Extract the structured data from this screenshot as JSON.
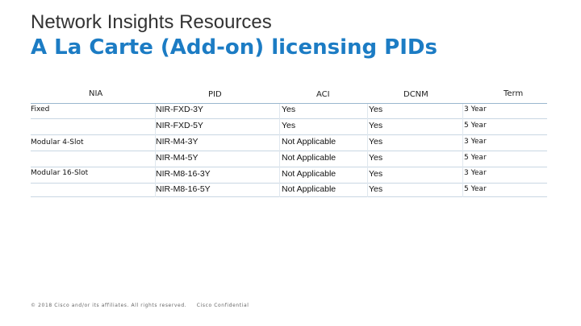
{
  "header": {
    "subtitle": "Network Insights Resources",
    "title": "A La Carte (Add-on) licensing PIDs"
  },
  "table": {
    "columns": [
      "NIA",
      "PID",
      "ACI",
      "DCNM",
      "Term"
    ],
    "rows": [
      {
        "nia": "Fixed",
        "pid": "NIR-FXD-3Y",
        "aci": "Yes",
        "dcnm": "Yes",
        "term": "3 Year"
      },
      {
        "nia": "",
        "pid": "NIR-FXD-5Y",
        "aci": "Yes",
        "dcnm": "Yes",
        "term": "5 Year"
      },
      {
        "nia": "Modular 4-Slot",
        "pid": "NIR-M4-3Y",
        "aci": "Not Applicable",
        "dcnm": "Yes",
        "term": "3 Year"
      },
      {
        "nia": "",
        "pid": "NIR-M4-5Y",
        "aci": "Not Applicable",
        "dcnm": "Yes",
        "term": "5 Year"
      },
      {
        "nia": "Modular 16-Slot",
        "pid": "NIR-M8-16-3Y",
        "aci": "Not Applicable",
        "dcnm": "Yes",
        "term": "3 Year"
      },
      {
        "nia": "",
        "pid": "NIR-M8-16-5Y",
        "aci": "Not Applicable",
        "dcnm": "Yes",
        "term": "5 Year"
      }
    ]
  },
  "footer": {
    "copyright": "© 2018 Cisco and/or its affiliates. All rights reserved.",
    "confidential": "Cisco Confidential"
  },
  "colors": {
    "title": "#1c7cc4",
    "subtitle": "#333333",
    "header_rule": "#9ab7cf",
    "row_rule": "#c9d7e3"
  }
}
